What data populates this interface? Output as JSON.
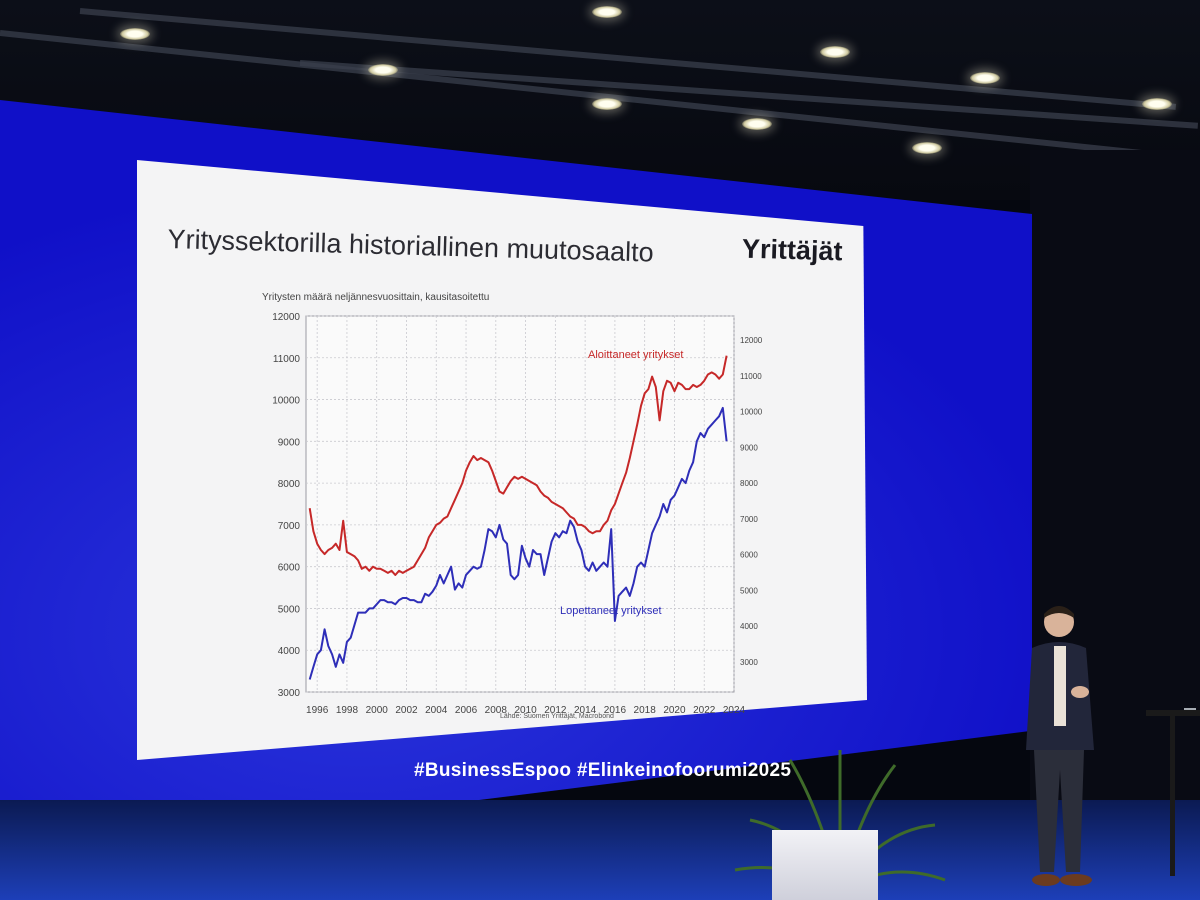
{
  "slide": {
    "title": "Yrityssektorilla historiallinen muutosaalto",
    "brand": "Yrittäjät"
  },
  "event": {
    "hashtags": "#BusinessEspoo  #Elinkeinofoorumi2025"
  },
  "colors": {
    "screen": "#1010c8",
    "started_series": "#c62828",
    "closed_series": "#2e2eb8"
  },
  "chart_data": {
    "type": "line",
    "title": "",
    "subtitle": "Yritysten määrä neljännesvuosittain, kausitasoitettu",
    "source": "Lähde: Suomen Yrittäjät, Macrobond",
    "x_tick_labels": [
      "1996",
      "1998",
      "2000",
      "2002",
      "2004",
      "2006",
      "2008",
      "2010",
      "2012",
      "2014",
      "2016",
      "2018",
      "2020",
      "2022",
      "2024"
    ],
    "xlim": [
      1995.25,
      2024.0
    ],
    "y_left": {
      "lim": [
        3000,
        12000
      ],
      "ticks": [
        "3000",
        "4000",
        "5000",
        "6000",
        "7000",
        "8000",
        "9000",
        "10000",
        "11000",
        "12000"
      ]
    },
    "y_right": {
      "lim": [
        3000,
        12000
      ],
      "ticks": [
        "3000",
        "4000",
        "5000",
        "6000",
        "7000",
        "8000",
        "9000",
        "10000",
        "11000",
        "12000"
      ]
    },
    "grid": true,
    "series": [
      {
        "name": "Aloittaneet yritykset",
        "axis": "left",
        "x": [
          1995.5,
          1995.75,
          1996.0,
          1996.25,
          1996.5,
          1996.75,
          1997.0,
          1997.25,
          1997.5,
          1997.75,
          1998.0,
          1998.25,
          1998.5,
          1998.75,
          1999.0,
          1999.25,
          1999.5,
          1999.75,
          2000.0,
          2000.25,
          2000.5,
          2000.75,
          2001.0,
          2001.25,
          2001.5,
          2001.75,
          2002.0,
          2002.25,
          2002.5,
          2002.75,
          2003.0,
          2003.25,
          2003.5,
          2003.75,
          2004.0,
          2004.25,
          2004.5,
          2004.75,
          2005.0,
          2005.25,
          2005.5,
          2005.75,
          2006.0,
          2006.25,
          2006.5,
          2006.75,
          2007.0,
          2007.25,
          2007.5,
          2007.75,
          2008.0,
          2008.25,
          2008.5,
          2008.75,
          2009.0,
          2009.25,
          2009.5,
          2009.75,
          2010.0,
          2010.25,
          2010.5,
          2010.75,
          2011.0,
          2011.25,
          2011.5,
          2011.75,
          2012.0,
          2012.25,
          2012.5,
          2012.75,
          2013.0,
          2013.25,
          2013.5,
          2013.75,
          2014.0,
          2014.25,
          2014.5,
          2014.75,
          2015.0,
          2015.25,
          2015.5,
          2015.75,
          2016.0,
          2016.25,
          2016.5,
          2016.75,
          2017.0,
          2017.25,
          2017.5,
          2017.75,
          2018.0,
          2018.25,
          2018.5,
          2018.75,
          2019.0,
          2019.25,
          2019.5,
          2019.75,
          2020.0,
          2020.25,
          2020.5,
          2020.75,
          2021.0,
          2021.25,
          2021.5,
          2021.75,
          2022.0,
          2022.25,
          2022.5,
          2022.75,
          2023.0,
          2023.25,
          2023.5
        ],
        "y": [
          7400,
          6850,
          6550,
          6400,
          6300,
          6400,
          6450,
          6550,
          6400,
          7100,
          6350,
          6300,
          6250,
          6150,
          5950,
          6000,
          5900,
          6000,
          5950,
          5950,
          5900,
          5850,
          5900,
          5800,
          5900,
          5850,
          5900,
          5950,
          6000,
          6150,
          6300,
          6450,
          6700,
          6850,
          7000,
          7050,
          7150,
          7200,
          7400,
          7600,
          7800,
          8000,
          8300,
          8500,
          8650,
          8550,
          8600,
          8550,
          8500,
          8300,
          8050,
          7800,
          7750,
          7900,
          8050,
          8150,
          8100,
          8150,
          8100,
          8050,
          8000,
          7950,
          7800,
          7700,
          7650,
          7550,
          7500,
          7450,
          7400,
          7300,
          7200,
          7150,
          7000,
          7000,
          6950,
          6850,
          6800,
          6850,
          6850,
          7000,
          7100,
          7350,
          7500,
          7750,
          8000,
          8250,
          8600,
          9000,
          9400,
          9850,
          10150,
          10250,
          10550,
          10300,
          9500,
          10200,
          10450,
          10400,
          10200,
          10400,
          10350,
          10250,
          10250,
          10350,
          10300,
          10350,
          10450,
          10600,
          10650,
          10600,
          10500,
          10600,
          11050
        ]
      },
      {
        "name": "Lopettaneet yritykset",
        "axis": "left",
        "x": [
          1995.5,
          1995.75,
          1996.0,
          1996.25,
          1996.5,
          1996.75,
          1997.0,
          1997.25,
          1997.5,
          1997.75,
          1998.0,
          1998.25,
          1998.5,
          1998.75,
          1999.0,
          1999.25,
          1999.5,
          1999.75,
          2000.0,
          2000.25,
          2000.5,
          2000.75,
          2001.0,
          2001.25,
          2001.5,
          2001.75,
          2002.0,
          2002.25,
          2002.5,
          2002.75,
          2003.0,
          2003.25,
          2003.5,
          2003.75,
          2004.0,
          2004.25,
          2004.5,
          2004.75,
          2005.0,
          2005.25,
          2005.5,
          2005.75,
          2006.0,
          2006.25,
          2006.5,
          2006.75,
          2007.0,
          2007.25,
          2007.5,
          2007.75,
          2008.0,
          2008.25,
          2008.5,
          2008.75,
          2009.0,
          2009.25,
          2009.5,
          2009.75,
          2010.0,
          2010.25,
          2010.5,
          2010.75,
          2011.0,
          2011.25,
          2011.5,
          2011.75,
          2012.0,
          2012.25,
          2012.5,
          2012.75,
          2013.0,
          2013.25,
          2013.5,
          2013.75,
          2014.0,
          2014.25,
          2014.5,
          2014.75,
          2015.0,
          2015.25,
          2015.5,
          2015.75,
          2016.0,
          2016.25,
          2016.5,
          2016.75,
          2017.0,
          2017.25,
          2017.5,
          2017.75,
          2018.0,
          2018.25,
          2018.5,
          2018.75,
          2019.0,
          2019.25,
          2019.5,
          2019.75,
          2020.0,
          2020.25,
          2020.5,
          2020.75,
          2021.0,
          2021.25,
          2021.5,
          2021.75,
          2022.0,
          2022.25,
          2022.5,
          2022.75,
          2023.0,
          2023.25,
          2023.5
        ],
        "y": [
          3300,
          3600,
          3900,
          4000,
          4500,
          4100,
          3900,
          3600,
          3900,
          3700,
          4200,
          4300,
          4600,
          4900,
          4900,
          4900,
          5000,
          5000,
          5100,
          5200,
          5200,
          5150,
          5150,
          5100,
          5200,
          5250,
          5250,
          5200,
          5200,
          5150,
          5150,
          5350,
          5300,
          5400,
          5550,
          5800,
          5600,
          5800,
          6000,
          5450,
          5600,
          5500,
          5800,
          5900,
          6000,
          5950,
          6000,
          6400,
          6900,
          6850,
          6700,
          7000,
          6650,
          6550,
          5800,
          5700,
          5800,
          6500,
          6200,
          6000,
          6400,
          6300,
          6300,
          5800,
          6200,
          6600,
          6800,
          6700,
          6850,
          6800,
          7100,
          6950,
          6600,
          6400,
          6000,
          5900,
          6100,
          5900,
          6000,
          6100,
          6000,
          6900,
          4700,
          5300,
          5400,
          5500,
          5300,
          5600,
          6000,
          6100,
          6000,
          6400,
          6800,
          7000,
          7200,
          7500,
          7300,
          7600,
          7700,
          7900,
          8100,
          8000,
          8300,
          8500,
          9000,
          9200,
          9100,
          9300,
          9400,
          9500,
          9600,
          9800,
          9000
        ]
      }
    ],
    "annotations": [
      {
        "text": "Aloittaneet yritykset",
        "x": 2012.8,
        "y": 11150
      },
      {
        "text": "Lopettaneet yritykset",
        "x": 2012.5,
        "y": 4850
      }
    ]
  }
}
